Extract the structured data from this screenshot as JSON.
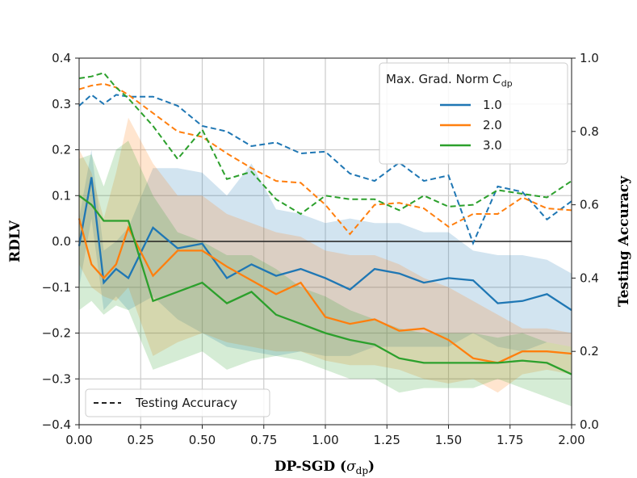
{
  "chart_data": {
    "type": "line",
    "xlabel": "DP-SGD (",
    "xlabel_sym": "σ",
    "xlabel_sub": "dp",
    "xlabel_close": ")",
    "ylabel": "RDLV",
    "y2label": "Testing Accuracy",
    "xlim": [
      0.0,
      2.0
    ],
    "ylim": [
      -0.4,
      0.4
    ],
    "y2lim": [
      0.0,
      1.0
    ],
    "xticks": [
      "0.00",
      "0.25",
      "0.50",
      "0.75",
      "1.00",
      "1.25",
      "1.50",
      "1.75",
      "2.00"
    ],
    "yticks": [
      "−0.4",
      "−0.3",
      "−0.2",
      "−0.1",
      "0.0",
      "0.1",
      "0.2",
      "0.3",
      "0.4"
    ],
    "y2ticks": [
      "0.0",
      "0.2",
      "0.4",
      "0.6",
      "0.8",
      "1.0"
    ],
    "grid": true,
    "x": [
      0.0,
      0.05,
      0.1,
      0.15,
      0.2,
      0.3,
      0.4,
      0.5,
      0.6,
      0.7,
      0.8,
      0.9,
      1.0,
      1.1,
      1.2,
      1.3,
      1.4,
      1.5,
      1.6,
      1.7,
      1.8,
      1.9,
      2.0
    ],
    "legend_title": "Max. Grad. Norm ",
    "legend_title_sym": "C",
    "legend_title_sub": "dp",
    "legend2_label": "Testing Accuracy",
    "series": [
      {
        "name": "1.0",
        "color": "#1f77b4",
        "rdlv": [
          -0.01,
          0.14,
          -0.09,
          -0.06,
          -0.08,
          0.03,
          -0.015,
          -0.005,
          -0.08,
          -0.05,
          -0.075,
          -0.06,
          -0.08,
          -0.105,
          -0.06,
          -0.07,
          -0.09,
          -0.08,
          -0.085,
          -0.135,
          -0.13,
          -0.115,
          -0.15
        ],
        "upper": [
          0.05,
          0.2,
          -0.02,
          0.0,
          0.03,
          0.16,
          0.16,
          0.15,
          0.1,
          0.17,
          0.07,
          0.06,
          0.04,
          0.05,
          0.04,
          0.04,
          0.02,
          0.02,
          -0.02,
          -0.03,
          -0.03,
          -0.04,
          -0.07
        ],
        "lower": [
          -0.1,
          0.05,
          -0.15,
          -0.12,
          -0.15,
          -0.12,
          -0.17,
          -0.2,
          -0.23,
          -0.24,
          -0.25,
          -0.24,
          -0.25,
          -0.25,
          -0.23,
          -0.23,
          -0.23,
          -0.23,
          -0.2,
          -0.23,
          -0.24,
          -0.22,
          -0.23
        ],
        "accuracy": [
          0.87,
          0.9,
          0.875,
          0.9,
          0.895,
          0.895,
          0.87,
          0.815,
          0.8,
          0.76,
          0.77,
          0.74,
          0.745,
          0.685,
          0.665,
          0.715,
          0.665,
          0.68,
          0.495,
          0.65,
          0.635,
          0.56,
          0.61
        ]
      },
      {
        "name": "2.0",
        "color": "#ff7f0e",
        "rdlv": [
          0.05,
          -0.05,
          -0.08,
          -0.05,
          0.03,
          -0.075,
          -0.02,
          -0.02,
          -0.055,
          -0.085,
          -0.115,
          -0.09,
          -0.165,
          -0.18,
          -0.17,
          -0.195,
          -0.19,
          -0.215,
          -0.255,
          -0.265,
          -0.24,
          -0.24,
          -0.245
        ],
        "upper": [
          0.2,
          0.15,
          0.05,
          0.15,
          0.27,
          0.17,
          0.1,
          0.1,
          0.06,
          0.04,
          0.02,
          0.01,
          -0.02,
          -0.03,
          -0.03,
          -0.05,
          -0.08,
          -0.1,
          -0.13,
          -0.16,
          -0.19,
          -0.19,
          -0.2
        ],
        "lower": [
          -0.05,
          -0.1,
          -0.12,
          -0.13,
          -0.1,
          -0.25,
          -0.22,
          -0.2,
          -0.22,
          -0.23,
          -0.24,
          -0.24,
          -0.26,
          -0.27,
          -0.27,
          -0.28,
          -0.3,
          -0.31,
          -0.3,
          -0.33,
          -0.29,
          -0.28,
          -0.29
        ],
        "accuracy": [
          0.915,
          0.925,
          0.93,
          0.92,
          0.9,
          0.85,
          0.8,
          0.785,
          0.74,
          0.7,
          0.665,
          0.66,
          0.6,
          0.52,
          0.6,
          0.605,
          0.59,
          0.54,
          0.575,
          0.575,
          0.62,
          0.59,
          0.585
        ],
        "lower_note": "band"
      },
      {
        "name": "3.0",
        "color": "#2ca02c",
        "rdlv": [
          0.1,
          0.08,
          0.045,
          0.045,
          0.045,
          -0.13,
          -0.11,
          -0.09,
          -0.135,
          -0.11,
          -0.16,
          -0.18,
          -0.2,
          -0.215,
          -0.225,
          -0.255,
          -0.265,
          -0.265,
          -0.265,
          -0.265,
          -0.26,
          -0.265,
          -0.29
        ],
        "upper": [
          0.18,
          0.19,
          0.12,
          0.2,
          0.22,
          0.1,
          0.02,
          0.0,
          -0.03,
          -0.03,
          -0.06,
          -0.1,
          -0.12,
          -0.15,
          -0.17,
          -0.19,
          -0.2,
          -0.2,
          -0.2,
          -0.21,
          -0.2,
          -0.22,
          -0.23
        ],
        "lower": [
          -0.15,
          -0.13,
          -0.16,
          -0.14,
          -0.15,
          -0.28,
          -0.26,
          -0.24,
          -0.28,
          -0.26,
          -0.25,
          -0.26,
          -0.28,
          -0.3,
          -0.3,
          -0.33,
          -0.32,
          -0.32,
          -0.32,
          -0.3,
          -0.32,
          -0.34,
          -0.36
        ],
        "accuracy": [
          0.945,
          0.95,
          0.96,
          0.92,
          0.89,
          0.815,
          0.725,
          0.805,
          0.67,
          0.69,
          0.615,
          0.575,
          0.625,
          0.615,
          0.615,
          0.585,
          0.625,
          0.595,
          0.6,
          0.64,
          0.63,
          0.62,
          0.665
        ]
      }
    ]
  }
}
